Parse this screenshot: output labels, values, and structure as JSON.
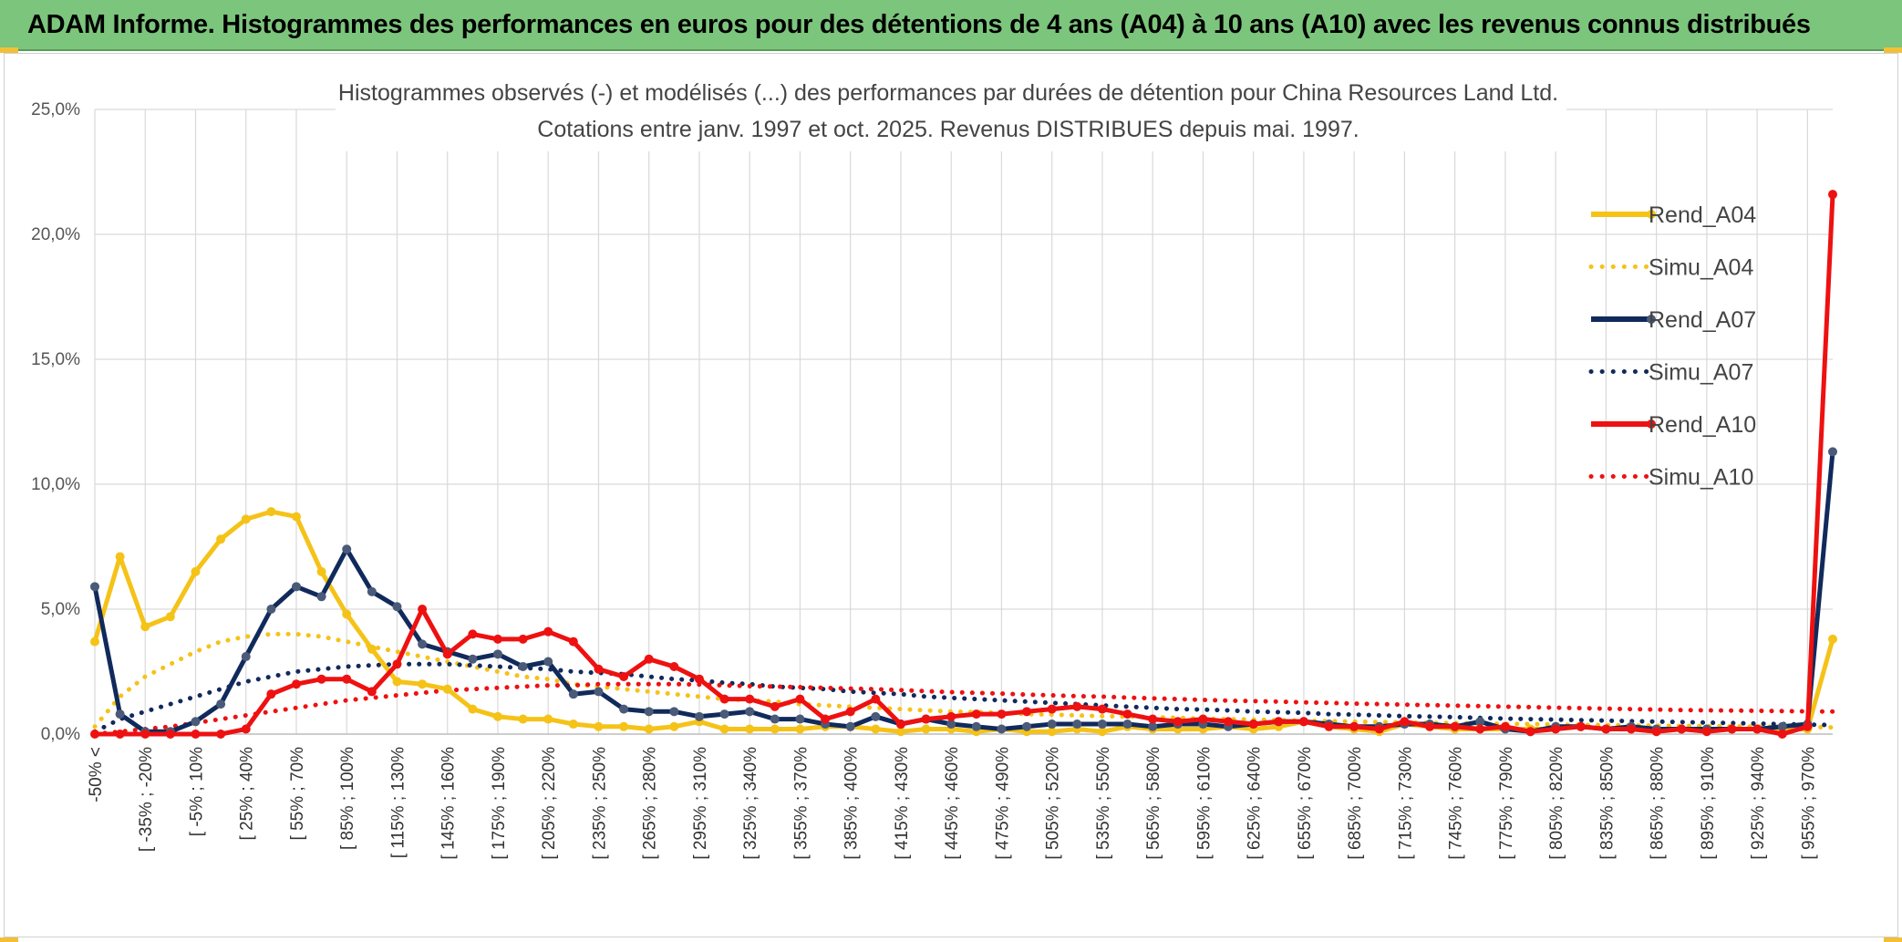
{
  "banner": {
    "title": "ADAM Informe. Histogrammes des performances en euros pour des détentions de 4 ans (A04) à 10 ans (A10) avec les revenus connus distribués"
  },
  "colors": {
    "banner_bg": "#7cc57c",
    "A04": "#f5c218",
    "A07": "#112a5c",
    "A10": "#ee1111",
    "grid": "#d9d9d9"
  },
  "chart_data": {
    "type": "line",
    "title_line1": "Histogrammes observés (-) et modélisés (...) des performances par durées de détention pour China Resources Land Ltd.",
    "title_line2": "Cotations entre janv. 1997 et oct. 2025. Revenus DISTRIBUES depuis mai. 1997.",
    "ylim": [
      0,
      25
    ],
    "yticks": [
      "0,0%",
      "5,0%",
      "10,0%",
      "15,0%",
      "20,0%",
      "25,0%"
    ],
    "category_count": 70,
    "category_labels": [
      "-50% <",
      "[ -35% ; -20%",
      "[ -5% ; 10%",
      "[ 25% ; 40%",
      "[ 55% ; 70%",
      "[ 85% ; 100%",
      "[ 115% ; 130%",
      "[ 145% ; 160%",
      "[ 175% ; 190%",
      "[ 205% ; 220%",
      "[ 235% ; 250%",
      "[ 265% ; 280%",
      "[ 295% ; 310%",
      "[ 325% ; 340%",
      "[ 355% ; 370%",
      "[ 385% ; 400%",
      "[ 415% ; 430%",
      "[ 445% ; 460%",
      "[ 475% ; 490%",
      "[ 505% ; 520%",
      "[ 535% ; 550%",
      "[ 565% ; 580%",
      "[ 595% ; 610%",
      "[ 625% ; 640%",
      "[ 655% ; 670%",
      "[ 685% ; 700%",
      "[ 715% ; 730%",
      "[ 745% ; 760%",
      "[ 775% ; 790%",
      "[ 805% ; 820%",
      "[ 835% ; 850%",
      "[ 865% ; 880%",
      "[ 895% ; 910%",
      "[ 925% ; 940%",
      "[ 955% ; 970%"
    ],
    "series": [
      {
        "name": "Rend_A04",
        "color": "#f5c218",
        "style": "solid",
        "values": [
          3.7,
          7.1,
          4.3,
          4.7,
          6.5,
          7.8,
          8.6,
          8.9,
          8.7,
          6.5,
          4.8,
          3.4,
          2.1,
          2.0,
          1.8,
          1.0,
          0.7,
          0.6,
          0.6,
          0.4,
          0.3,
          0.3,
          0.2,
          0.3,
          0.5,
          0.2,
          0.2,
          0.2,
          0.2,
          0.3,
          0.3,
          0.2,
          0.1,
          0.2,
          0.2,
          0.1,
          0.2,
          0.1,
          0.1,
          0.2,
          0.1,
          0.3,
          0.2,
          0.2,
          0.2,
          0.3,
          0.2,
          0.3,
          0.5,
          0.3,
          0.2,
          0.1,
          0.4,
          0.3,
          0.2,
          0.2,
          0.2,
          0.2,
          0.2,
          0.3,
          0.2,
          0.2,
          0.1,
          0.2,
          0.2,
          0.2,
          0.2,
          0.2,
          0.2,
          3.8
        ]
      },
      {
        "name": "Simu_A04",
        "color": "#f5c218",
        "style": "dotted",
        "values": [
          0.3,
          1.5,
          2.3,
          2.8,
          3.3,
          3.7,
          3.9,
          4.0,
          4.0,
          3.9,
          3.7,
          3.5,
          3.3,
          3.1,
          2.9,
          2.7,
          2.5,
          2.3,
          2.2,
          2.0,
          1.9,
          1.8,
          1.7,
          1.6,
          1.5,
          1.4,
          1.35,
          1.3,
          1.2,
          1.15,
          1.1,
          1.05,
          1.0,
          0.95,
          0.9,
          0.88,
          0.85,
          0.8,
          0.78,
          0.75,
          0.72,
          0.7,
          0.68,
          0.65,
          0.62,
          0.6,
          0.58,
          0.56,
          0.54,
          0.52,
          0.5,
          0.48,
          0.47,
          0.45,
          0.44,
          0.42,
          0.41,
          0.4,
          0.38,
          0.37,
          0.36,
          0.35,
          0.34,
          0.33,
          0.32,
          0.31,
          0.3,
          0.29,
          0.28,
          0.27
        ]
      },
      {
        "name": "Rend_A07",
        "color": "#112a5c",
        "style": "solid",
        "values": [
          5.9,
          0.8,
          0.1,
          0.1,
          0.5,
          1.2,
          3.1,
          5.0,
          5.9,
          5.5,
          7.4,
          5.7,
          5.1,
          3.6,
          3.3,
          3.0,
          3.2,
          2.7,
          2.9,
          1.6,
          1.7,
          1.0,
          0.9,
          0.9,
          0.7,
          0.8,
          0.9,
          0.6,
          0.6,
          0.4,
          0.3,
          0.7,
          0.4,
          0.6,
          0.4,
          0.3,
          0.2,
          0.3,
          0.4,
          0.4,
          0.4,
          0.4,
          0.3,
          0.4,
          0.4,
          0.3,
          0.4,
          0.5,
          0.5,
          0.4,
          0.3,
          0.3,
          0.4,
          0.4,
          0.3,
          0.5,
          0.2,
          0.1,
          0.3,
          0.3,
          0.2,
          0.3,
          0.2,
          0.2,
          0.2,
          0.2,
          0.2,
          0.3,
          0.4,
          11.3
        ]
      },
      {
        "name": "Simu_A07",
        "color": "#112a5c",
        "style": "dotted",
        "values": [
          0.1,
          0.6,
          0.9,
          1.2,
          1.5,
          1.8,
          2.1,
          2.3,
          2.5,
          2.6,
          2.7,
          2.75,
          2.8,
          2.8,
          2.8,
          2.75,
          2.7,
          2.65,
          2.6,
          2.5,
          2.45,
          2.4,
          2.3,
          2.2,
          2.15,
          2.05,
          2.0,
          1.9,
          1.85,
          1.8,
          1.7,
          1.65,
          1.6,
          1.5,
          1.45,
          1.4,
          1.35,
          1.3,
          1.25,
          1.2,
          1.15,
          1.1,
          1.05,
          1.0,
          0.98,
          0.95,
          0.9,
          0.88,
          0.85,
          0.8,
          0.78,
          0.75,
          0.72,
          0.7,
          0.68,
          0.65,
          0.62,
          0.6,
          0.58,
          0.56,
          0.54,
          0.52,
          0.5,
          0.48,
          0.46,
          0.44,
          0.42,
          0.4,
          0.38,
          0.36
        ]
      },
      {
        "name": "Rend_A10",
        "color": "#ee1111",
        "style": "solid",
        "values": [
          0.0,
          0.0,
          0.0,
          0.0,
          0.0,
          0.0,
          0.2,
          1.6,
          2.0,
          2.2,
          2.2,
          1.7,
          2.8,
          5.0,
          3.2,
          4.0,
          3.8,
          3.8,
          4.1,
          3.7,
          2.6,
          2.3,
          3.0,
          2.7,
          2.2,
          1.4,
          1.4,
          1.1,
          1.4,
          0.6,
          0.9,
          1.4,
          0.4,
          0.6,
          0.7,
          0.8,
          0.8,
          0.9,
          1.0,
          1.1,
          1.0,
          0.8,
          0.6,
          0.5,
          0.6,
          0.5,
          0.4,
          0.5,
          0.5,
          0.3,
          0.3,
          0.2,
          0.5,
          0.3,
          0.3,
          0.2,
          0.3,
          0.1,
          0.2,
          0.3,
          0.2,
          0.2,
          0.1,
          0.2,
          0.1,
          0.2,
          0.2,
          0.0,
          0.3,
          21.6
        ]
      },
      {
        "name": "Simu_A10",
        "color": "#ee1111",
        "style": "dotted",
        "values": [
          0.0,
          0.1,
          0.2,
          0.3,
          0.45,
          0.6,
          0.75,
          0.9,
          1.05,
          1.2,
          1.35,
          1.45,
          1.55,
          1.65,
          1.75,
          1.8,
          1.85,
          1.9,
          1.95,
          1.95,
          2.0,
          2.0,
          2.0,
          2.0,
          1.98,
          1.95,
          1.92,
          1.9,
          1.88,
          1.85,
          1.82,
          1.8,
          1.76,
          1.72,
          1.68,
          1.65,
          1.62,
          1.58,
          1.55,
          1.52,
          1.5,
          1.46,
          1.43,
          1.4,
          1.37,
          1.34,
          1.32,
          1.3,
          1.27,
          1.25,
          1.22,
          1.2,
          1.18,
          1.16,
          1.14,
          1.12,
          1.1,
          1.08,
          1.06,
          1.04,
          1.02,
          1.0,
          0.98,
          0.96,
          0.95,
          0.94,
          0.93,
          0.92,
          0.91,
          0.9
        ]
      }
    ],
    "legend": [
      "Rend_A04",
      "Simu_A04",
      "Rend_A07",
      "Simu_A07",
      "Rend_A10",
      "Simu_A10"
    ],
    "legend_position": "top-right",
    "grid": true
  }
}
